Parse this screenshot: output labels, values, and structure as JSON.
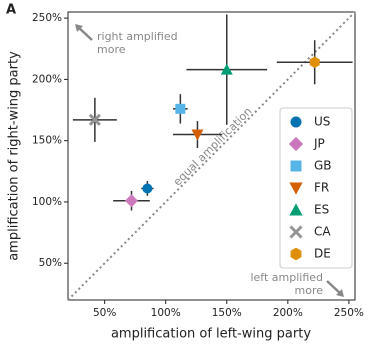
{
  "chart_data": {
    "type": "scatter",
    "panel_label": "A",
    "xlabel": "amplification of left-wing party",
    "ylabel": "amplification of right-wing party",
    "xlim": [
      20,
      255
    ],
    "ylim": [
      20,
      255
    ],
    "xticks": [
      {
        "value": 50,
        "label": "50%"
      },
      {
        "value": 100,
        "label": "100%"
      },
      {
        "value": 150,
        "label": "150%"
      },
      {
        "value": 200,
        "label": "200%"
      },
      {
        "value": 250,
        "label": "250%"
      }
    ],
    "yticks": [
      {
        "value": 50,
        "label": "50%"
      },
      {
        "value": 100,
        "label": "100%"
      },
      {
        "value": 150,
        "label": "150%"
      },
      {
        "value": 200,
        "label": "200%"
      },
      {
        "value": 250,
        "label": "250%"
      }
    ],
    "diagonal_label": "equal amplification",
    "annotations": [
      [
        "right amplified",
        "more"
      ],
      [
        "left amplified",
        "more"
      ]
    ],
    "legend": "right",
    "series": [
      {
        "name": "US",
        "color": "#0173b2",
        "marker": "circle",
        "x": [
          85
        ],
        "values": [
          111
        ],
        "xerr": [
          5
        ],
        "yerr": [
          6
        ]
      },
      {
        "name": "JP",
        "color": "#cc78bc",
        "marker": "diamond",
        "x": [
          72
        ],
        "values": [
          101
        ],
        "xerr": [
          15
        ],
        "yerr": [
          8
        ]
      },
      {
        "name": "GB",
        "color": "#56b4e9",
        "marker": "square",
        "x": [
          112
        ],
        "values": [
          176
        ],
        "xerr": [
          6
        ],
        "yerr": [
          12
        ]
      },
      {
        "name": "FR",
        "color": "#d55e00",
        "marker": "triangle-down",
        "x": [
          126
        ],
        "values": [
          155
        ],
        "xerr": [
          20
        ],
        "yerr": [
          11
        ]
      },
      {
        "name": "ES",
        "color": "#029e73",
        "marker": "triangle-up",
        "x": [
          150
        ],
        "values": [
          208
        ],
        "xerr": [
          33
        ],
        "yerr": [
          45
        ]
      },
      {
        "name": "CA",
        "color": "#949494",
        "marker": "x",
        "x": [
          42
        ],
        "values": [
          167
        ],
        "xerr": [
          18
        ],
        "yerr": [
          18
        ]
      },
      {
        "name": "DE",
        "color": "#de8f05",
        "marker": "hexagon",
        "x": [
          222
        ],
        "values": [
          214
        ],
        "xerr": [
          31
        ],
        "yerr": [
          18
        ]
      }
    ]
  }
}
